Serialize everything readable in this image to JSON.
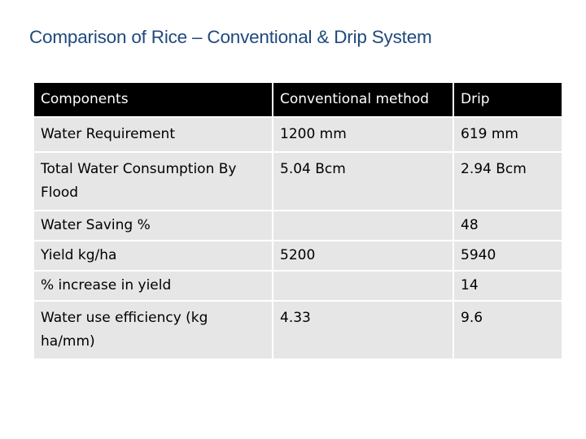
{
  "title": "Comparison of Rice – Conventional & Drip System",
  "table": {
    "headers": [
      "Components",
      "Conventional method",
      "Drip"
    ],
    "rows": [
      [
        "Water Requirement",
        "1200 mm",
        "619 mm"
      ],
      [
        "Total Water Consumption By Flood",
        "5.04 Bcm",
        "2.94 Bcm"
      ],
      [
        "Water Saving  %",
        "",
        "48"
      ],
      [
        "Yield kg/ha",
        "5200",
        "5940"
      ],
      [
        "% increase in yield",
        "",
        "14"
      ],
      [
        "Water use efficiency (kg ha/mm)",
        "4.33",
        "9.6"
      ]
    ]
  },
  "colors": {
    "title": "#1f497d",
    "header_bg": "#000000",
    "header_text": "#ffffff",
    "cell_bg": "#e6e6e6"
  }
}
